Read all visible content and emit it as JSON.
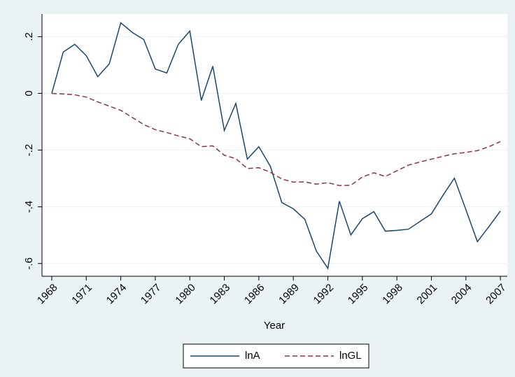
{
  "chart_data": {
    "type": "line",
    "x_label": "Year",
    "x": [
      1968,
      1969,
      1970,
      1971,
      1972,
      1973,
      1974,
      1975,
      1976,
      1977,
      1978,
      1979,
      1980,
      1981,
      1982,
      1983,
      1984,
      1985,
      1986,
      1987,
      1988,
      1989,
      1990,
      1991,
      1992,
      1993,
      1994,
      1995,
      1996,
      1997,
      1998,
      1999,
      2000,
      2001,
      2002,
      2003,
      2004,
      2005,
      2006,
      2007
    ],
    "series": [
      {
        "name": "lnA",
        "color": "#1a476f",
        "dash": false,
        "values": [
          0,
          0.146,
          0.173,
          0.133,
          0.059,
          0.104,
          0.249,
          0.215,
          0.19,
          0.086,
          0.072,
          0.173,
          0.22,
          -0.025,
          0.096,
          -0.131,
          -0.035,
          -0.232,
          -0.188,
          -0.257,
          -0.385,
          -0.407,
          -0.444,
          -0.556,
          -0.617,
          -0.38,
          -0.499,
          -0.442,
          -0.417,
          -0.486,
          -0.483,
          -0.479,
          -0.452,
          -0.425,
          -0.36,
          -0.299,
          -0.41,
          -0.523,
          -0.47,
          -0.415
        ]
      },
      {
        "name": "lnGL",
        "color": "#90353b",
        "dash": true,
        "values": [
          0,
          -0.002,
          -0.005,
          -0.013,
          -0.03,
          -0.045,
          -0.06,
          -0.085,
          -0.11,
          -0.128,
          -0.138,
          -0.15,
          -0.16,
          -0.188,
          -0.185,
          -0.218,
          -0.23,
          -0.265,
          -0.262,
          -0.278,
          -0.302,
          -0.313,
          -0.312,
          -0.32,
          -0.315,
          -0.325,
          -0.324,
          -0.295,
          -0.28,
          -0.293,
          -0.273,
          -0.253,
          -0.242,
          -0.232,
          -0.222,
          -0.213,
          -0.208,
          -0.202,
          -0.188,
          -0.17
        ]
      }
    ],
    "xlim": [
      1967.15,
      2007.6
    ],
    "xticks": [
      1968,
      1971,
      1974,
      1977,
      1980,
      1983,
      1986,
      1989,
      1992,
      1995,
      1998,
      2001,
      2004,
      2007
    ],
    "ylim": [
      -0.645,
      0.28
    ],
    "yticks": [
      {
        "value": -0.6,
        "label": "-.6"
      },
      {
        "value": -0.4,
        "label": "-.4"
      },
      {
        "value": -0.2,
        "label": "-.2"
      },
      0,
      {
        "value": 0.2,
        "label": ".2"
      }
    ],
    "grid": true
  }
}
